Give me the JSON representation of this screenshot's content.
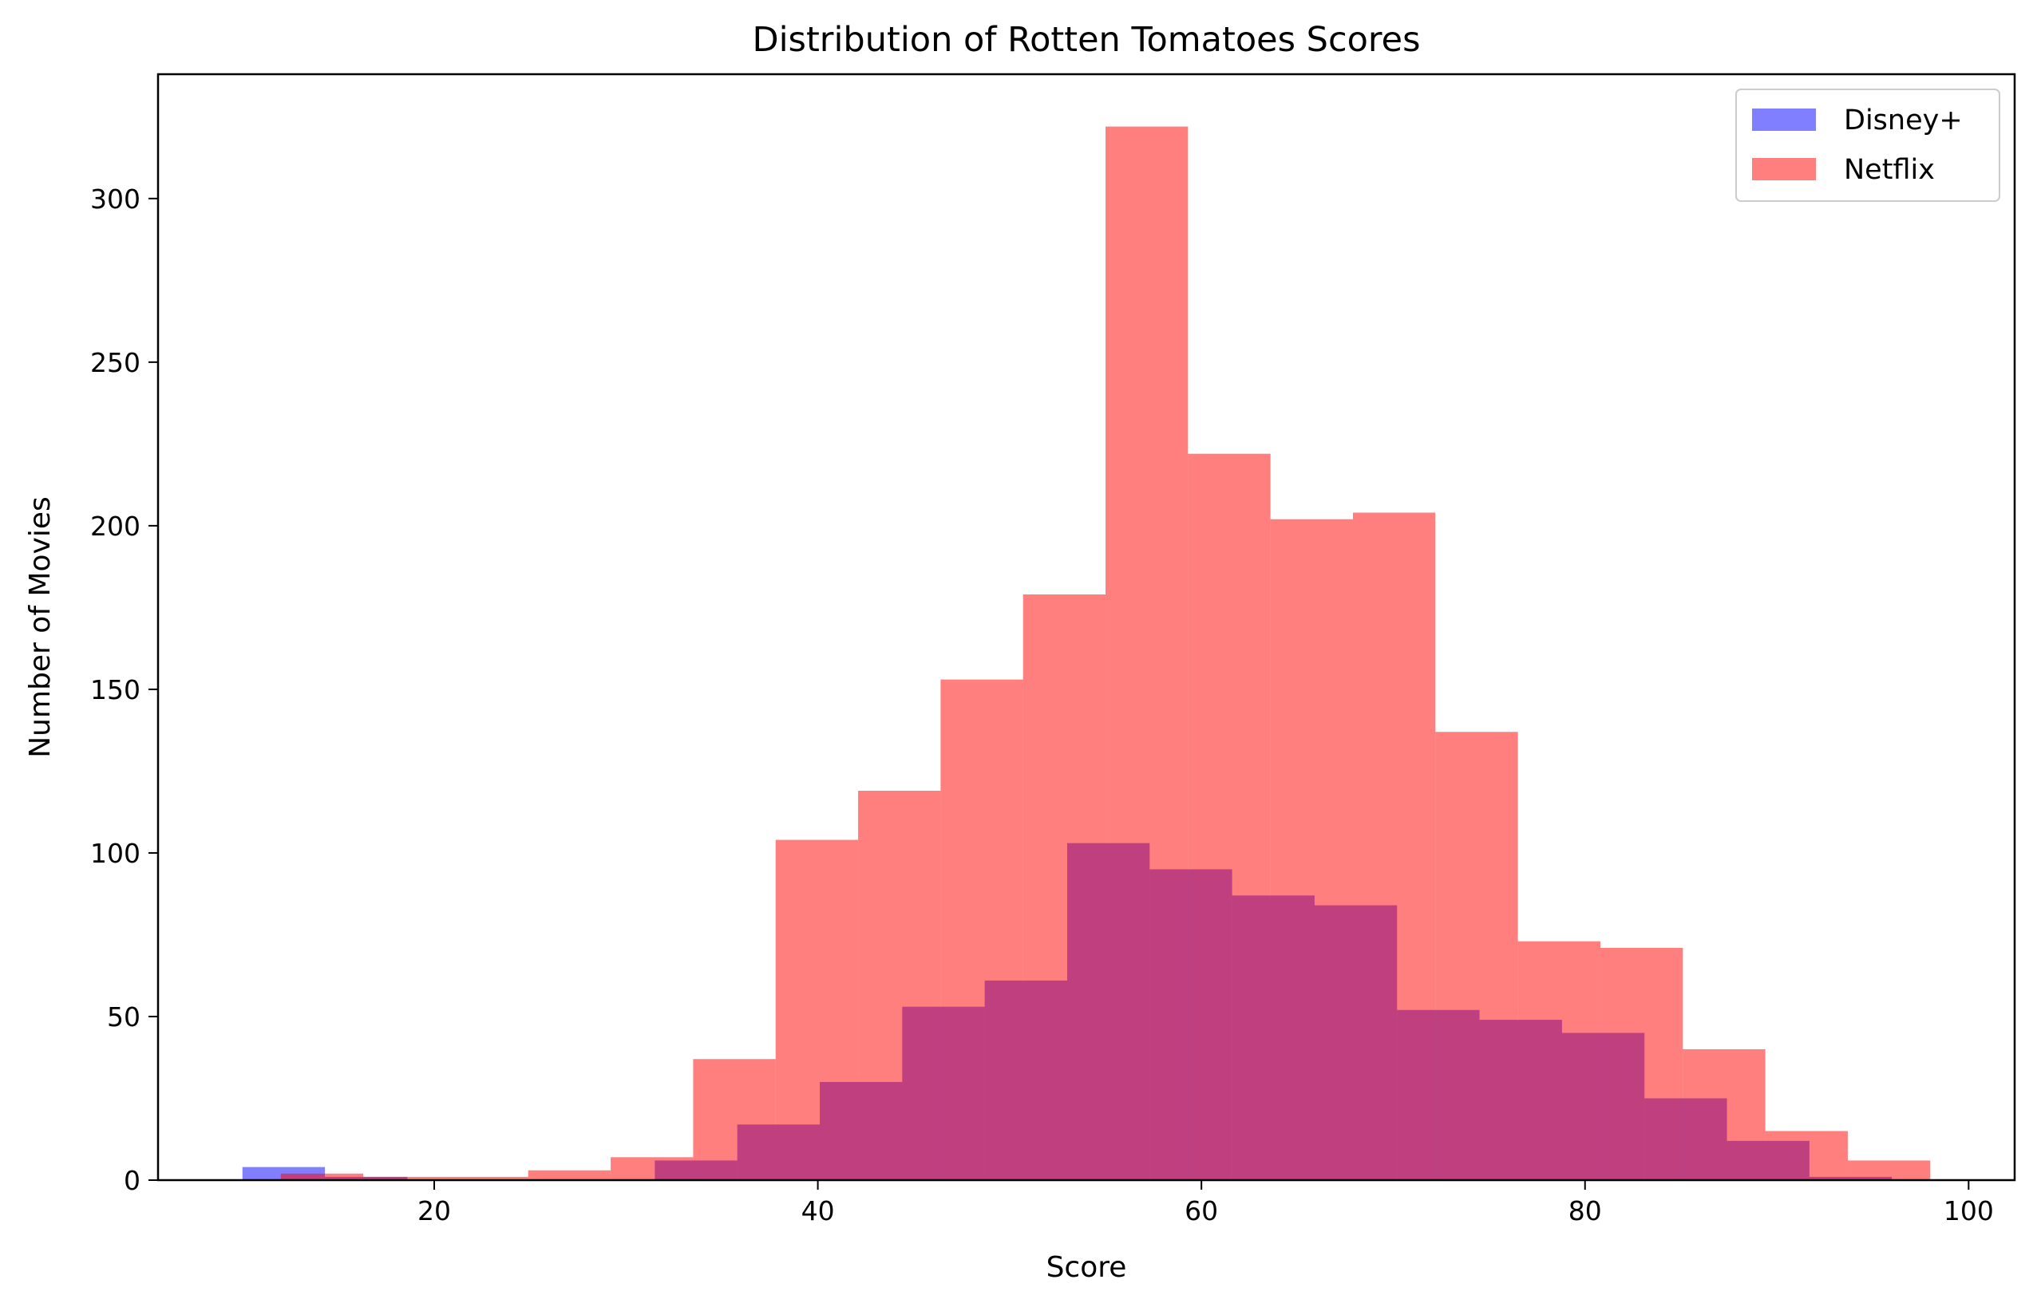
{
  "chart_data": {
    "type": "bar",
    "title": "Distribution of Rotten Tomatoes Scores",
    "xlabel": "Score",
    "ylabel": "Number of Movies",
    "xlim": [
      5.6,
      102.4
    ],
    "ylim": [
      0,
      338
    ],
    "x_ticks": [
      20,
      40,
      60,
      80,
      100
    ],
    "y_ticks": [
      0,
      50,
      100,
      150,
      200,
      250,
      300
    ],
    "grid": false,
    "legend_position": "upper right",
    "series": [
      {
        "name": "Disney+",
        "color": "#0000ff",
        "opacity": 0.5,
        "bin_edges": [
          10,
          14.3,
          18.6,
          22.9,
          27.2,
          31.5,
          35.8,
          40.1,
          44.4,
          48.7,
          53.0,
          57.3,
          61.6,
          65.9,
          70.2,
          74.5,
          78.8,
          83.1,
          87.4,
          91.7,
          96.0
        ],
        "values": [
          4,
          1,
          0,
          0,
          0,
          6,
          17,
          30,
          53,
          61,
          103,
          95,
          87,
          84,
          52,
          49,
          45,
          25,
          12,
          1
        ]
      },
      {
        "name": "Netflix",
        "color": "#ff0000",
        "opacity": 0.5,
        "bin_edges": [
          12,
          16.3,
          20.6,
          24.9,
          29.2,
          33.5,
          37.8,
          42.1,
          46.4,
          50.7,
          55.0,
          59.3,
          63.6,
          67.9,
          72.2,
          76.5,
          80.8,
          85.1,
          89.4,
          93.7,
          98.0
        ],
        "values": [
          2,
          1,
          1,
          3,
          7,
          37,
          104,
          119,
          153,
          179,
          322,
          222,
          202,
          204,
          137,
          73,
          71,
          40,
          15,
          6
        ]
      }
    ]
  }
}
